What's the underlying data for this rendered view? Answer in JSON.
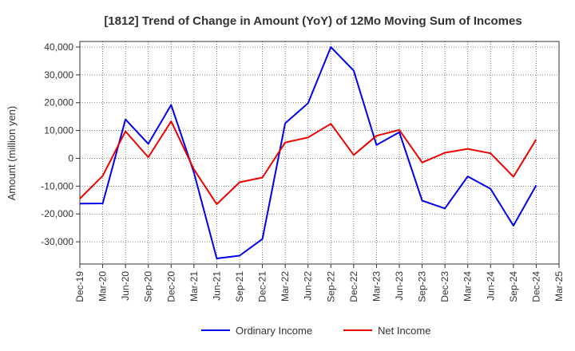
{
  "chart_data": {
    "type": "line",
    "title": "[1812]  Trend of Change in Amount (YoY) of 12Mo Moving Sum of Incomes",
    "xlabel": "",
    "ylabel": "Amount (million yen)",
    "ylim": [
      -38000,
      42000
    ],
    "yticks": [
      40000,
      30000,
      20000,
      10000,
      0,
      -10000,
      -20000,
      -30000
    ],
    "ytick_labels": [
      "40,000",
      "30,000",
      "20,000",
      "10,000",
      "0",
      "-10,000",
      "-20,000",
      "-30,000"
    ],
    "categories": [
      "Dec-19",
      "Mar-20",
      "Jun-20",
      "Sep-20",
      "Dec-20",
      "Mar-21",
      "Jun-21",
      "Sep-21",
      "Dec-21",
      "Mar-22",
      "Jun-22",
      "Sep-22",
      "Dec-22",
      "Mar-23",
      "Jun-23",
      "Sep-23",
      "Dec-23",
      "Mar-24",
      "Jun-24",
      "Sep-24",
      "Dec-24",
      "Mar-25"
    ],
    "grid": true,
    "legend_position": "bottom",
    "series": [
      {
        "name": "Ordinary Income",
        "color": "#0000ee",
        "values": [
          -16300,
          -16200,
          14000,
          5200,
          19200,
          -5200,
          -36000,
          -35000,
          -29000,
          12600,
          19800,
          40000,
          31500,
          4800,
          9400,
          -15200,
          -18000,
          -6500,
          -11000,
          -24200,
          -9700,
          null
        ]
      },
      {
        "name": "Net Income",
        "color": "#ee0000",
        "values": [
          -14500,
          -6300,
          9700,
          400,
          13300,
          -4000,
          -16500,
          -8600,
          -6900,
          5700,
          7500,
          12400,
          1200,
          8100,
          10200,
          -1500,
          2000,
          3400,
          1800,
          -6600,
          6800,
          null
        ]
      }
    ]
  }
}
